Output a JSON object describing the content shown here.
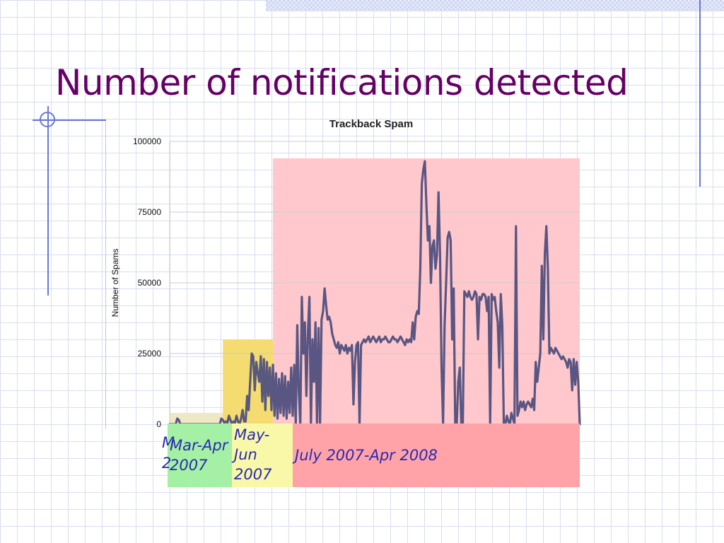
{
  "slide": {
    "title": "Number of notifications detected"
  },
  "chart_data": {
    "type": "line",
    "title": "Trackback Spam",
    "xlabel": "",
    "ylabel": "Number of Spams",
    "ylim": [
      0,
      100000
    ],
    "y_ticks": [
      "100000",
      "75000",
      "50000",
      "25000",
      "0"
    ],
    "y_tick_values": [
      100000,
      75000,
      50000,
      25000,
      0
    ],
    "grid": true,
    "line_color": "#50507e",
    "series": [
      {
        "values": [
          0,
          0,
          0,
          0,
          0,
          2000,
          1500,
          0,
          0,
          0,
          0,
          0,
          0,
          0,
          0,
          0,
          0,
          0,
          0,
          0,
          0,
          0,
          0,
          0,
          0,
          0,
          0,
          0,
          0,
          0,
          0,
          0,
          0,
          0,
          2000,
          1500,
          500,
          1000,
          500,
          3000,
          1500,
          0,
          1000,
          500,
          3000,
          1000,
          0,
          2000,
          5000,
          1000,
          1000,
          10000,
          5000,
          15000,
          25000,
          24000,
          12000,
          22000,
          18000,
          15000,
          24000,
          8000,
          23000,
          5000,
          22000,
          10000,
          20000,
          5000,
          21000,
          3000,
          18000,
          2000,
          16000,
          4000,
          18000,
          3000,
          17000,
          2000,
          15000,
          4000,
          20000,
          3000,
          21000,
          0,
          35000,
          12000,
          0,
          45000,
          25000,
          36000,
          10000,
          32000,
          45000,
          0,
          30000,
          15000,
          36000,
          0,
          34000,
          0,
          37000,
          40000,
          48000,
          42000,
          37000,
          38000,
          36000,
          32000,
          30000,
          28000,
          27000,
          29000,
          25000,
          28000,
          27000,
          26000,
          28000,
          25000,
          27000,
          26000,
          28000,
          7000,
          22000,
          28000,
          29000,
          0,
          28000,
          29000,
          30000,
          29000,
          30000,
          31000,
          29000,
          30000,
          31000,
          30000,
          29000,
          30000,
          31000,
          29000,
          30000,
          30000,
          31000,
          30000,
          29000,
          29000,
          30000,
          31000,
          30000,
          30000,
          29000,
          30000,
          31000,
          30000,
          29000,
          28000,
          30000,
          29000,
          30000,
          29000,
          36000,
          30000,
          38000,
          40000,
          39000,
          55000,
          85000,
          90000,
          93000,
          78000,
          65000,
          70000,
          50000,
          63000,
          65000,
          55000,
          60000,
          82000,
          60000,
          20000,
          0,
          35000,
          50000,
          66000,
          68000,
          65000,
          30000,
          48000,
          0,
          0,
          15000,
          20000,
          0,
          0,
          47000,
          46000,
          45000,
          47000,
          45000,
          44000,
          45000,
          47000,
          46000,
          30000,
          45000,
          44000,
          46000,
          46000,
          45000,
          40000,
          45000,
          0,
          46000,
          44000,
          45000,
          40000,
          36000,
          20000,
          46000,
          35000,
          0,
          0,
          3000,
          1000,
          0,
          4000,
          2000,
          0,
          70000,
          3000,
          5000,
          8000,
          6000,
          8000,
          5000,
          7000,
          8000,
          7000,
          6000,
          9000,
          5000,
          22000,
          15000,
          20000,
          25000,
          56000,
          30000,
          60000,
          70000,
          55000,
          25000,
          27000,
          26000,
          25000,
          27000,
          26000,
          25000,
          24000,
          23000,
          24000,
          23000,
          22000,
          20000,
          23000,
          22000,
          12000,
          23000,
          14000,
          22000,
          15000,
          0
        ]
      }
    ],
    "periods": [
      {
        "label": "Mar-Apr 2007",
        "highlight_color": "#efe8c4",
        "label_bg": "#a4f0a4"
      },
      {
        "label": "May-Jun 2007",
        "highlight_color": "#f5dc70",
        "label_bg": "#f8f8a8"
      },
      {
        "label": "July 2007-Apr 2008",
        "highlight_color": "#ffc8cc",
        "label_bg": "#ffa3a8"
      }
    ]
  },
  "period_labels": {
    "mar_apr": "Mar-Apr\n2007",
    "may_jun": "May-\nJun\n2007",
    "july_apr": "July 2007-Apr 2008",
    "stray_m": "M",
    "stray_2": "2"
  }
}
